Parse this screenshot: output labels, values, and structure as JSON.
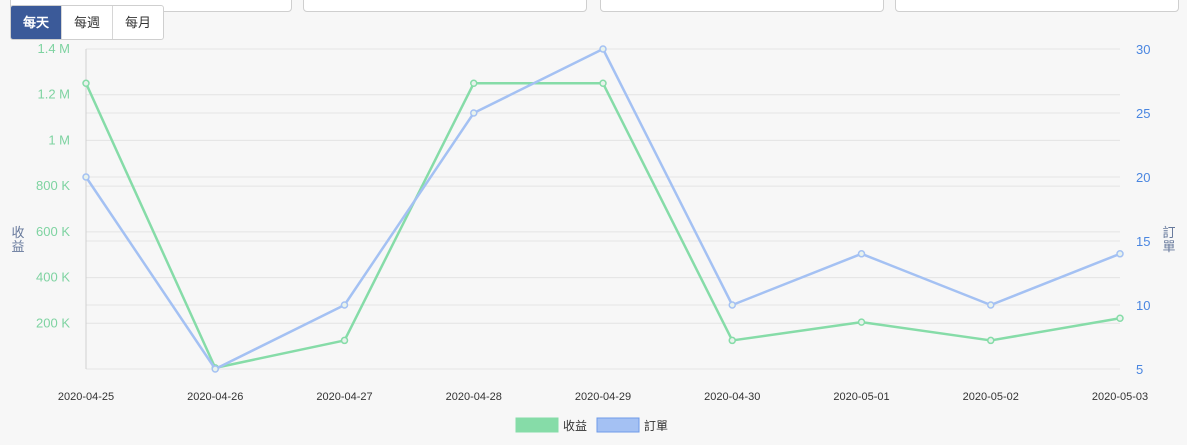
{
  "period_tabs": {
    "items": [
      {
        "label": "每天",
        "active": true
      },
      {
        "label": "每週",
        "active": false
      },
      {
        "label": "每月",
        "active": false
      }
    ]
  },
  "colors": {
    "revenue": "#86dca8",
    "orders": "#a4c1f3",
    "left_axis": "#7ed3a1",
    "right_axis": "#4a86e0",
    "grid": "#e4e4e4"
  },
  "chart_data": {
    "type": "line",
    "categories": [
      "2020-04-25",
      "2020-04-26",
      "2020-04-27",
      "2020-04-28",
      "2020-04-29",
      "2020-04-30",
      "2020-05-01",
      "2020-05-02",
      "2020-05-03"
    ],
    "series": [
      {
        "name": "收益",
        "axis": "left",
        "values": [
          1250000,
          5000,
          125000,
          1250000,
          1250000,
          125000,
          205000,
          125000,
          222000
        ]
      },
      {
        "name": "訂單",
        "axis": "right",
        "values": [
          20,
          5,
          10,
          25,
          30,
          10,
          14,
          10,
          14
        ]
      }
    ],
    "y_left": {
      "label": "收益",
      "ticks": [
        "200 K",
        "400 K",
        "600 K",
        "800 K",
        "1 M",
        "1.2 M",
        "1.4 M"
      ],
      "ylim": [
        0,
        1400000
      ]
    },
    "y_right": {
      "label": "訂單",
      "ticks": [
        "5",
        "10",
        "15",
        "20",
        "25",
        "30"
      ],
      "ylim": [
        5,
        30
      ]
    },
    "legend": "bottom-center",
    "grid": true
  }
}
